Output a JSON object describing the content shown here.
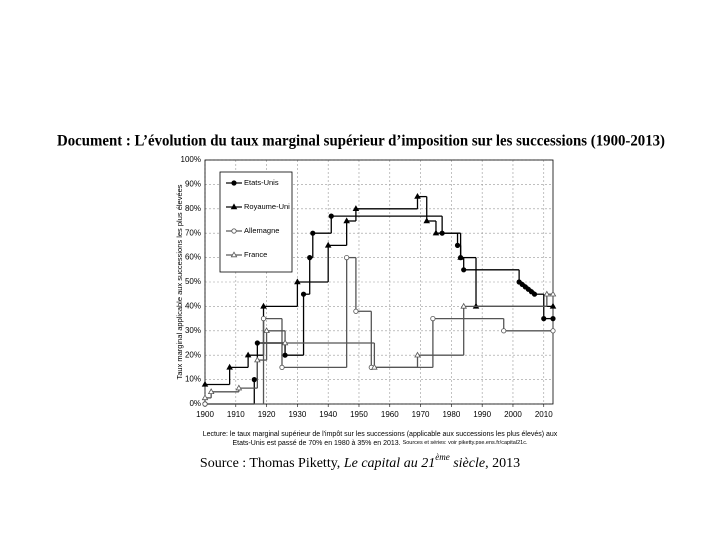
{
  "chart_data": {
    "type": "line",
    "drawstyle": "steps",
    "title": "Document : L’évolution du taux marginal supérieur d’imposition sur les successions (1900-2013)",
    "y_label": "Taux marginal applicable aux successions les plus élevées",
    "caption": [
      "Lecture: le taux marginal supérieur de l'impôt sur les successions (applicable aux successions les plus élevés) aux",
      "Etats-Unis est passé de 70% en 1980 à 35% en 2013.",
      "Sources et séries: voir piketty.pse.ens.fr/capital21c."
    ],
    "source": [
      "Source : Thomas Piketty, ",
      "Le capital au 21",
      "ème",
      " siècle",
      ", 2013"
    ],
    "xlim": [
      1900,
      2013
    ],
    "xticks": [
      1900,
      1910,
      1920,
      1930,
      1940,
      1950,
      1960,
      1970,
      1980,
      1990,
      2000,
      2010
    ],
    "ylim": [
      0,
      100
    ],
    "yticks": [
      {
        "value": 0,
        "label": "0%"
      },
      {
        "value": 10,
        "label": "10%"
      },
      {
        "value": 20,
        "label": "20%"
      },
      {
        "value": 30,
        "label": "30%"
      },
      {
        "value": 40,
        "label": "40%"
      },
      {
        "value": 50,
        "label": "50%"
      },
      {
        "value": 60,
        "label": "60%"
      },
      {
        "value": 70,
        "label": "70%"
      },
      {
        "value": 80,
        "label": "80%"
      },
      {
        "value": 90,
        "label": "90%"
      },
      {
        "value": 100,
        "label": "100%"
      }
    ],
    "grid": true,
    "legend": "upper left",
    "series": [
      {
        "name": "Etats-Unis",
        "color": "#000000",
        "marker": "filled-circle",
        "x": [
          1900,
          1916,
          1917,
          1926,
          1932,
          1934,
          1935,
          1941,
          1977,
          1982,
          1983,
          1984,
          2002,
          2003,
          2004,
          2005,
          2006,
          2007,
          2010,
          2013
        ],
        "values": [
          0,
          10,
          25,
          20,
          45,
          60,
          70,
          77,
          70,
          65,
          60,
          55,
          50,
          49,
          48,
          47,
          46,
          45,
          35,
          35
        ]
      },
      {
        "name": "Royaume-Uni",
        "color": "#000000",
        "marker": "filled-triangle",
        "x": [
          1900,
          1908,
          1914,
          1919,
          1930,
          1940,
          1946,
          1949,
          1969,
          1972,
          1975,
          1983,
          1988,
          2013
        ],
        "values": [
          8,
          15,
          20,
          40,
          50,
          65,
          75,
          80,
          85,
          75,
          70,
          60,
          40,
          40
        ]
      },
      {
        "name": "Allemagne",
        "color": "#555555",
        "marker": "open-circle",
        "x": [
          1900,
          1919,
          1925,
          1946,
          1949,
          1954,
          1974,
          1997,
          2013
        ],
        "values": [
          0,
          35,
          15,
          60,
          38,
          15,
          35,
          30,
          30
        ]
      },
      {
        "name": "France",
        "color": "#555555",
        "marker": "open-triangle",
        "x": [
          1900,
          1902,
          1911,
          1917,
          1920,
          1926,
          1955,
          1969,
          1984,
          2011,
          2013
        ],
        "values": [
          2.5,
          5,
          6.5,
          18,
          30,
          25,
          15,
          20,
          40,
          45,
          45
        ]
      }
    ]
  }
}
